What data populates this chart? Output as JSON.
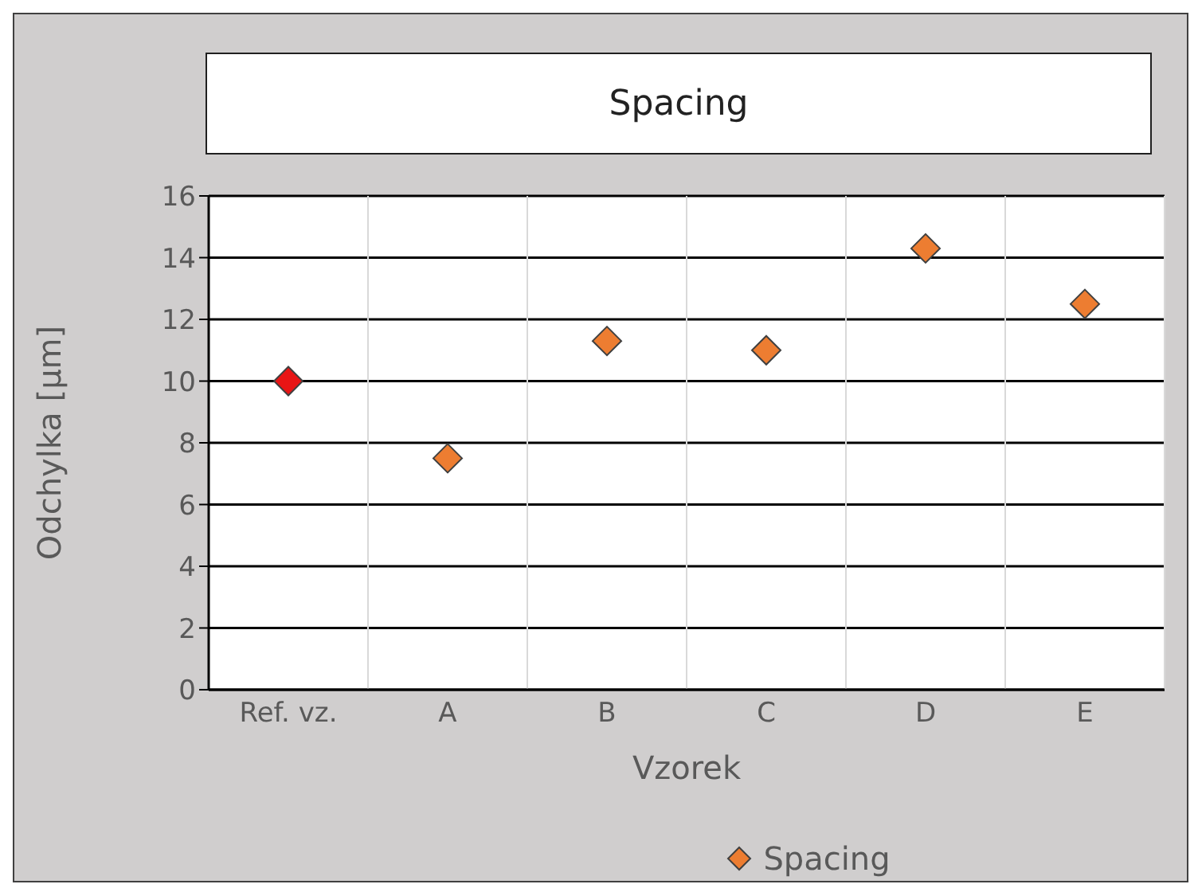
{
  "chart_data": {
    "type": "scatter",
    "title": "Spacing",
    "xlabel": "Vzorek",
    "ylabel": "Odchylka [µm]",
    "categories": [
      "Ref. vz.",
      "A",
      "B",
      "C",
      "D",
      "E"
    ],
    "series": [
      {
        "name": "Spacing",
        "color": "#ed7d31",
        "colors": [
          "#e81515",
          "#ed7d31",
          "#ed7d31",
          "#ed7d31",
          "#ed7d31",
          "#ed7d31"
        ],
        "values": [
          10.0,
          7.5,
          11.3,
          11.0,
          14.3,
          12.5
        ]
      }
    ],
    "ylim": [
      0,
      16
    ],
    "yticks": [
      0,
      2,
      4,
      6,
      8,
      10,
      12,
      14,
      16
    ],
    "grid": true,
    "legend": "bottom",
    "marker": "diamond"
  }
}
